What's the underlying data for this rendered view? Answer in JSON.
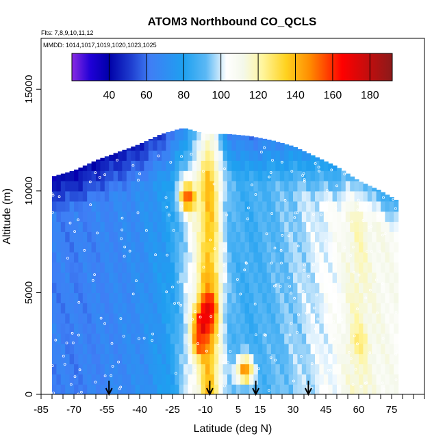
{
  "chart_data": {
    "type": "heatmap",
    "title": "ATOM3 Northbound CO_QCLS",
    "flights_note": "Flts: 7,8,9,10,11,12",
    "dates_note": "MMDD: 1014,1017,1019,1020,1023,1025",
    "xlabel": "Latitude (deg N)",
    "ylabel": "Altitude (m)",
    "xlim": [
      -85,
      90
    ],
    "ylim": [
      0,
      17500
    ],
    "x_ticks": [
      -85,
      -70,
      -55,
      -40,
      -25,
      -10,
      5,
      15,
      30,
      45,
      60,
      75
    ],
    "x_tick_labels": [
      "-85",
      "-70",
      "-55",
      "-40",
      "-25",
      "-10",
      "5",
      "15",
      "30",
      "45",
      "60",
      "75"
    ],
    "y_ticks": [
      0,
      5000,
      10000,
      15000
    ],
    "y_tick_labels": [
      "0",
      "5000",
      "10000",
      "15000"
    ],
    "colorbar": {
      "range": [
        20,
        192
      ],
      "ticks": [
        40,
        60,
        80,
        100,
        120,
        140,
        160,
        180
      ],
      "tick_labels": [
        "40",
        "60",
        "80",
        "100",
        "120",
        "140",
        "160",
        "180"
      ],
      "stops": [
        {
          "v": 20,
          "c": "#8a2be2"
        },
        {
          "v": 30,
          "c": "#1f00d6"
        },
        {
          "v": 40,
          "c": "#0000a8"
        },
        {
          "v": 52,
          "c": "#1f3fd0"
        },
        {
          "v": 62,
          "c": "#3f7ef5"
        },
        {
          "v": 80,
          "c": "#1ea0f0"
        },
        {
          "v": 92,
          "c": "#5bb8f5"
        },
        {
          "v": 103,
          "c": "#ffffff"
        },
        {
          "v": 112,
          "c": "#f4f8ea"
        },
        {
          "v": 122,
          "c": "#fff6a0"
        },
        {
          "v": 135,
          "c": "#ffd21f"
        },
        {
          "v": 148,
          "c": "#ff8a00"
        },
        {
          "v": 165,
          "c": "#ff0000"
        },
        {
          "v": 192,
          "c": "#8b1a1a"
        }
      ]
    },
    "grid": false,
    "legend": "colorbar top",
    "latitude_profile": [
      {
        "lat": -80,
        "v": 64
      },
      {
        "lat": -70,
        "v": 63
      },
      {
        "lat": -60,
        "v": 65
      },
      {
        "lat": -50,
        "v": 67
      },
      {
        "lat": -40,
        "v": 70
      },
      {
        "lat": -30,
        "v": 76
      },
      {
        "lat": -25,
        "v": 82
      },
      {
        "lat": -20,
        "v": 95
      },
      {
        "lat": -15,
        "v": 110
      },
      {
        "lat": -12,
        "v": 122
      },
      {
        "lat": -10,
        "v": 135
      },
      {
        "lat": -8,
        "v": 140
      },
      {
        "lat": -6,
        "v": 130
      },
      {
        "lat": -3,
        "v": 110
      },
      {
        "lat": 0,
        "v": 92
      },
      {
        "lat": 5,
        "v": 88
      },
      {
        "lat": 10,
        "v": 86
      },
      {
        "lat": 15,
        "v": 88
      },
      {
        "lat": 20,
        "v": 90
      },
      {
        "lat": 30,
        "v": 95
      },
      {
        "lat": 40,
        "v": 100
      },
      {
        "lat": 50,
        "v": 105
      },
      {
        "lat": 55,
        "v": 112
      },
      {
        "lat": 60,
        "v": 118
      },
      {
        "lat": 65,
        "v": 112
      },
      {
        "lat": 70,
        "v": 110
      },
      {
        "lat": 78,
        "v": 108
      }
    ],
    "hotspots": [
      {
        "lat": -11,
        "alt": 3500,
        "v": 178
      },
      {
        "lat": -9,
        "alt": 4300,
        "v": 170
      },
      {
        "lat": -12,
        "alt": 2600,
        "v": 160
      },
      {
        "lat": -18,
        "alt": 9700,
        "v": 155
      },
      {
        "lat": -8,
        "alt": 5500,
        "v": 140
      },
      {
        "lat": 8,
        "alt": 1200,
        "v": 148
      },
      {
        "lat": 60,
        "alt": 2600,
        "v": 125
      }
    ],
    "ceiling": [
      {
        "lat": -80,
        "alt": 10700
      },
      {
        "lat": -70,
        "alt": 11000
      },
      {
        "lat": -60,
        "alt": 11500
      },
      {
        "lat": -50,
        "alt": 11900
      },
      {
        "lat": -40,
        "alt": 12300
      },
      {
        "lat": -30,
        "alt": 12800
      },
      {
        "lat": -20,
        "alt": 13100
      },
      {
        "lat": -10,
        "alt": 12800
      },
      {
        "lat": 0,
        "alt": 12800
      },
      {
        "lat": 10,
        "alt": 12700
      },
      {
        "lat": 20,
        "alt": 12500
      },
      {
        "lat": 30,
        "alt": 12200
      },
      {
        "lat": 40,
        "alt": 11700
      },
      {
        "lat": 50,
        "alt": 11200
      },
      {
        "lat": 60,
        "alt": 10500
      },
      {
        "lat": 70,
        "alt": 10000
      },
      {
        "lat": 78,
        "alt": 9500
      }
    ],
    "lat_min": -80,
    "lat_max": 78,
    "arrows_lat": [
      -54,
      -8,
      13,
      37
    ]
  }
}
